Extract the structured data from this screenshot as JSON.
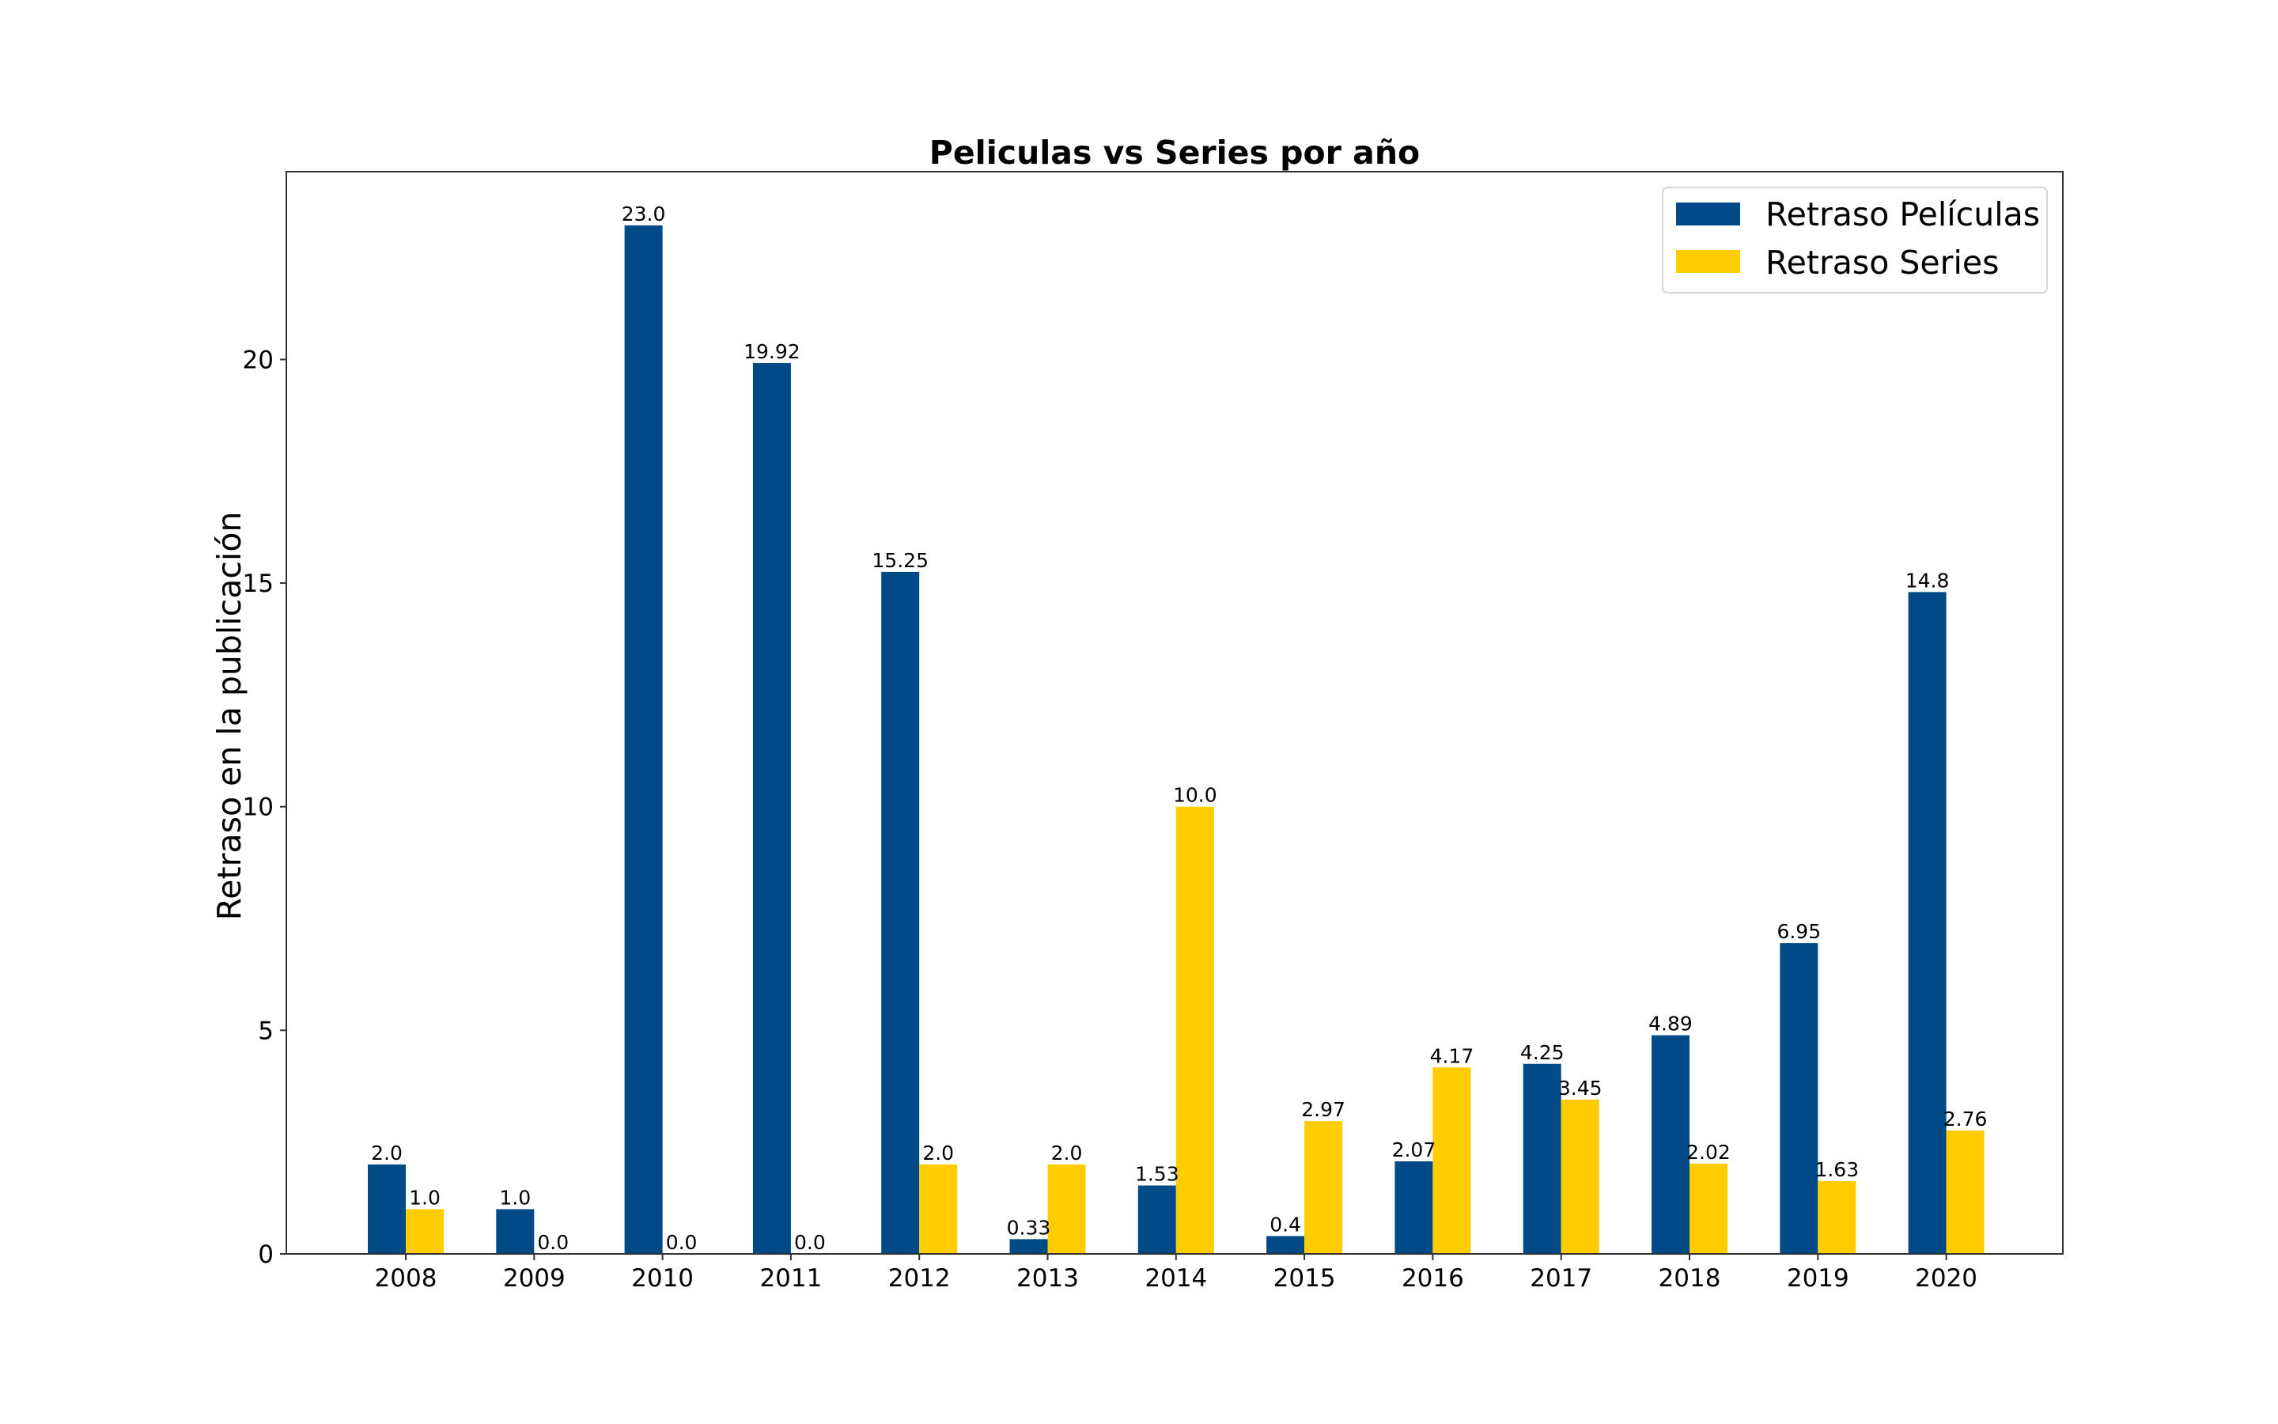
{
  "chart_data": {
    "type": "bar",
    "title": "Peliculas vs Series por año",
    "xlabel": "",
    "ylabel": "Retraso en la publicación",
    "categories": [
      "2008",
      "2009",
      "2010",
      "2011",
      "2012",
      "2013",
      "2014",
      "2015",
      "2016",
      "2017",
      "2018",
      "2019",
      "2020"
    ],
    "series": [
      {
        "name": "Retraso Películas",
        "color": "#004a87",
        "values": [
          2.0,
          1.0,
          23.0,
          19.92,
          15.25,
          0.33,
          1.53,
          0.4,
          2.07,
          4.25,
          4.89,
          6.95,
          14.8
        ],
        "labels": [
          "2.0",
          "1.0",
          "23.0",
          "19.92",
          "15.25",
          "0.33",
          "1.53",
          "0.4",
          "2.07",
          "4.25",
          "4.89",
          "6.95",
          "14.8"
        ]
      },
      {
        "name": "Retraso Series",
        "color": "#ffcc00",
        "values": [
          1.0,
          0.0,
          0.0,
          0.0,
          2.0,
          2.0,
          10.0,
          2.97,
          4.17,
          3.45,
          2.02,
          1.63,
          2.76
        ],
        "labels": [
          "1.0",
          "0.0",
          "0.0",
          "0.0",
          "2.0",
          "2.0",
          "10.0",
          "2.97",
          "4.17",
          "3.45",
          "2.02",
          "1.63",
          "2.76"
        ]
      }
    ],
    "yticks": [
      "0",
      "5",
      "10",
      "15",
      "20"
    ],
    "ylim": [
      0,
      24.2
    ],
    "grid": false,
    "legend_position": "top-right"
  }
}
